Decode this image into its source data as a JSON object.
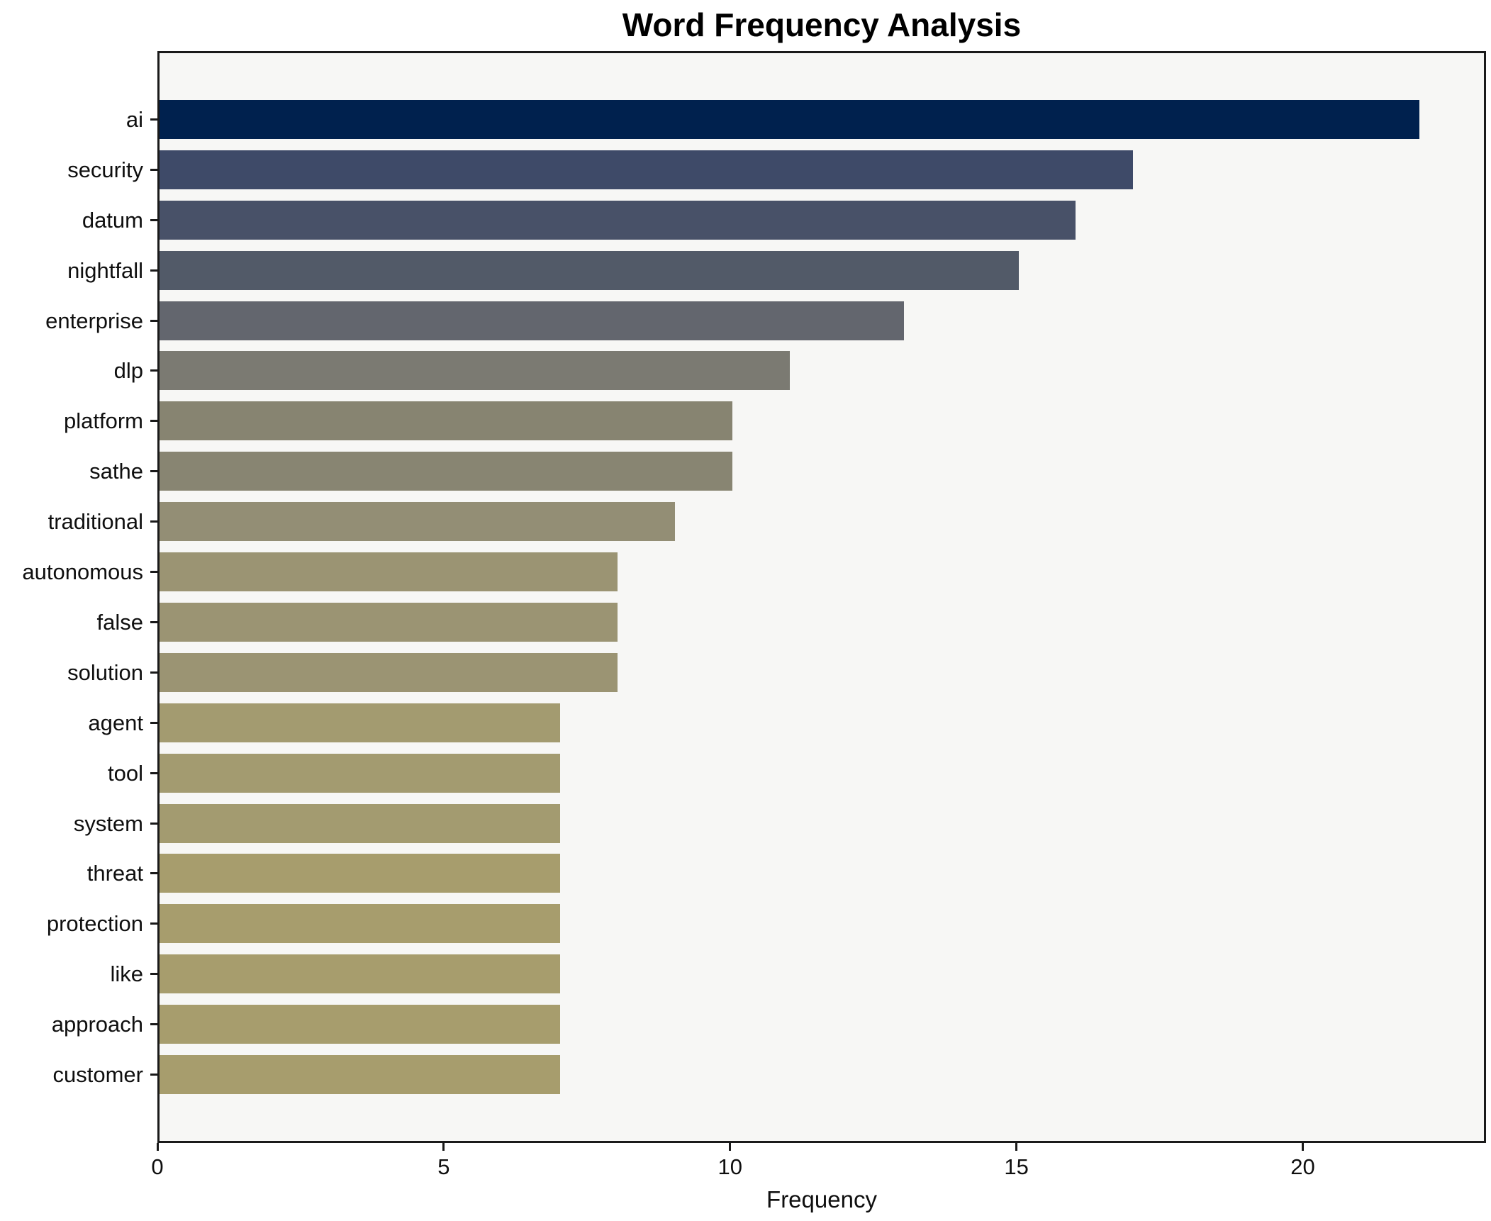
{
  "chart_data": {
    "type": "bar",
    "orientation": "horizontal",
    "title": "Word Frequency Analysis",
    "xlabel": "Frequency",
    "ylabel": "",
    "grid": false,
    "legend": null,
    "xlim": [
      0,
      23.2
    ],
    "xticks": [
      0,
      5,
      10,
      15,
      20
    ],
    "categories": [
      "ai",
      "security",
      "datum",
      "nightfall",
      "enterprise",
      "dlp",
      "platform",
      "sathe",
      "traditional",
      "autonomous",
      "false",
      "solution",
      "agent",
      "tool",
      "system",
      "threat",
      "protection",
      "like",
      "approach",
      "customer"
    ],
    "values": [
      22,
      17,
      16,
      15,
      13,
      11,
      10,
      10,
      9,
      8,
      8,
      8,
      7,
      7,
      7,
      7,
      7,
      7,
      7,
      7
    ],
    "bar_colors": [
      "#00214e",
      "#3e4a68",
      "#485168",
      "#525a68",
      "#63666e",
      "#7b7a72",
      "#878471",
      "#888572",
      "#938e75",
      "#9b9473",
      "#9b9473",
      "#9b9473",
      "#a39b70",
      "#a39b70",
      "#a39b70",
      "#a79d6d",
      "#a79d6d",
      "#a79d6d",
      "#a79d6d",
      "#a79d6d"
    ],
    "colors": {
      "figure_background": "#ffffff",
      "plot_background": "#f7f7f5",
      "axis": "#1a1a1a",
      "text": "#0f0f0f"
    }
  }
}
